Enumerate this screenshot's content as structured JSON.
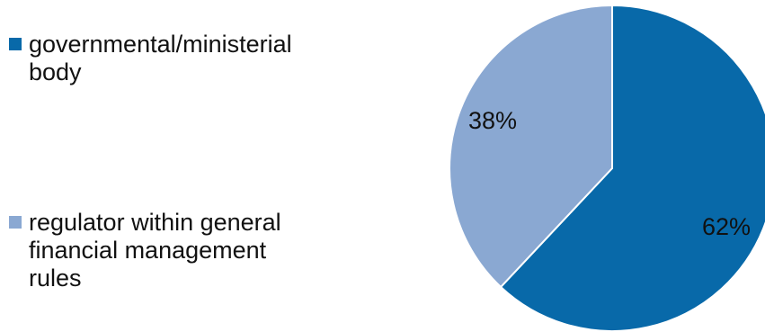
{
  "chart_data": {
    "type": "pie",
    "categories": [
      "governmental/ministerial body",
      "regulator within general financial management rules"
    ],
    "values": [
      62,
      38
    ],
    "value_labels": [
      "62%",
      "38%"
    ],
    "colors": [
      "#0869a9",
      "#8aa8d2"
    ],
    "legend": "left",
    "start_angle": "12 o'clock",
    "direction": "clockwise"
  },
  "legend_labels": {
    "item0": "governmental/ministerial body",
    "item1": "regulator within general financial management rules"
  }
}
